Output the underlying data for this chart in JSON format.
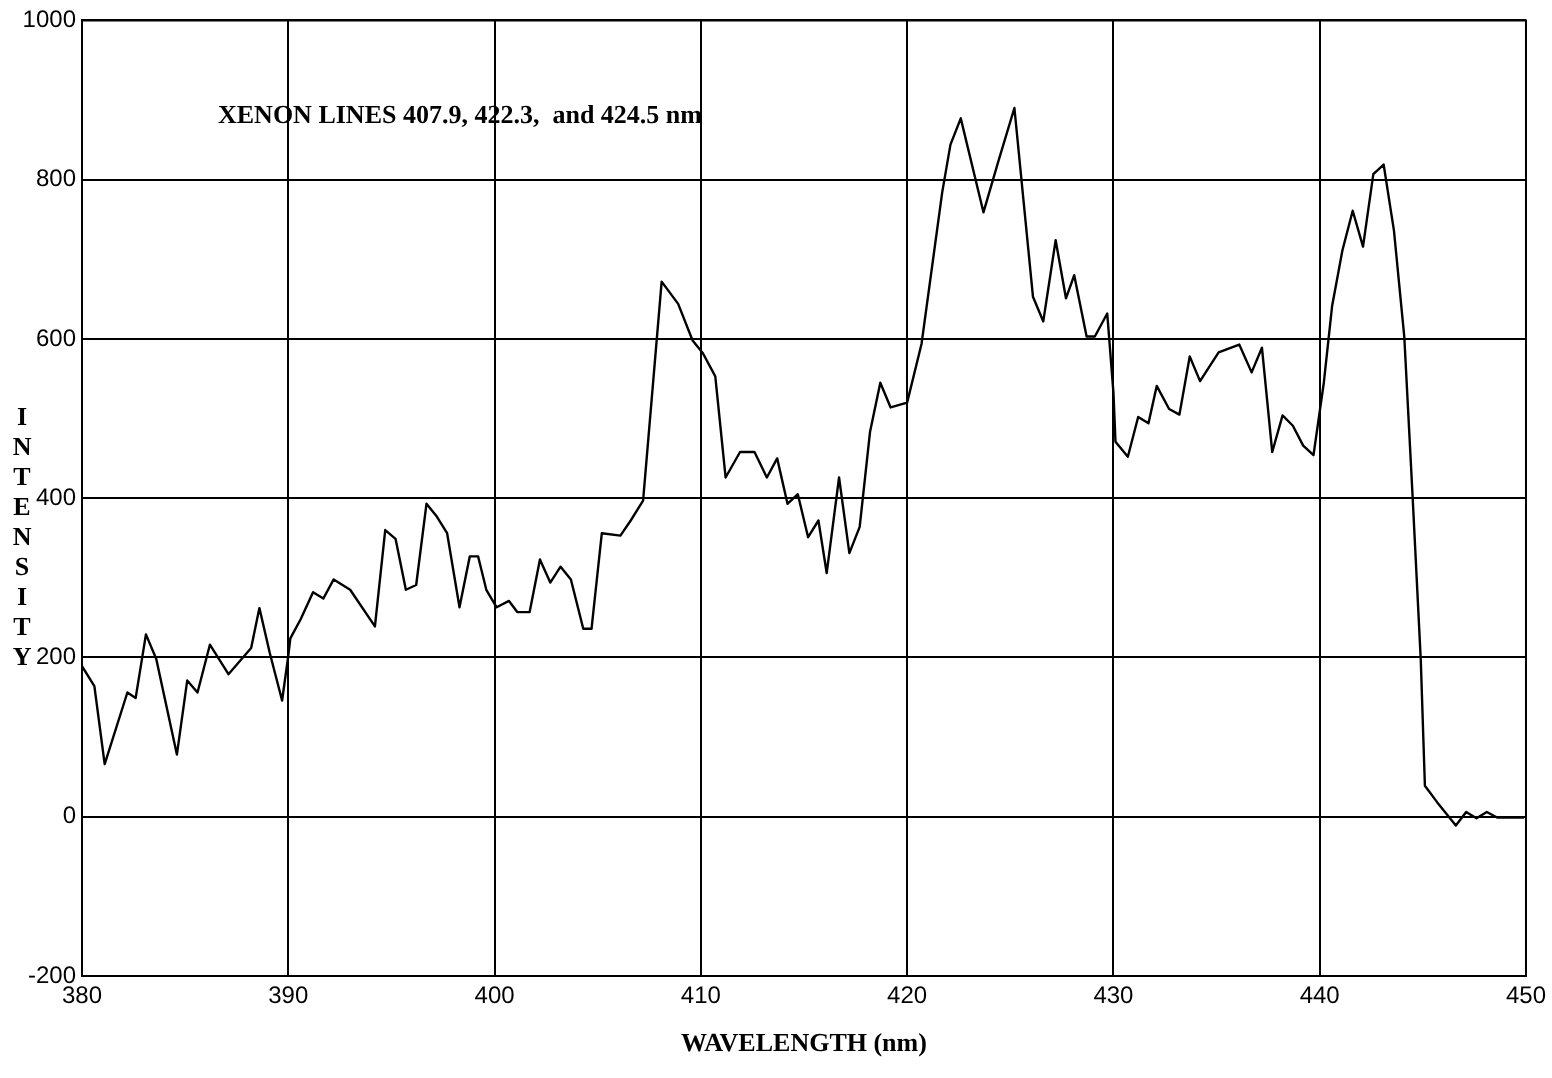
{
  "chart_data": {
    "type": "line",
    "xlabel": "WAVELENGTH (nm)",
    "ylabel": "INTENSITY",
    "annotations": [
      "XENON LINES 407.9, 422.3,  and 424.5 nm"
    ],
    "xlim": [
      380,
      450
    ],
    "xticks": [
      380,
      390,
      400,
      410,
      420,
      430,
      440,
      450
    ],
    "ylim": [
      -200,
      1000
    ],
    "yticks": [
      -200,
      0,
      200,
      400,
      600,
      800,
      1000
    ],
    "grid": true,
    "legend": false,
    "marker": "none",
    "line_style": "solid",
    "x": [
      380,
      380.6,
      381.1,
      382.2,
      382.6,
      383.1,
      383.6,
      384.6,
      385.1,
      385.6,
      386.2,
      387.1,
      388.2,
      388.6,
      389.1,
      389.7,
      390,
      390.1,
      390.6,
      391.2,
      391.7,
      392.2,
      393,
      394.2,
      394.7,
      395.2,
      395.7,
      396.2,
      396.7,
      397.2,
      397.7,
      398.3,
      398.8,
      399.2,
      399.6,
      400.1,
      400.7,
      401.1,
      401.7,
      402.2,
      402.7,
      403.2,
      403.7,
      404.3,
      404.7,
      405.2,
      406.1,
      406.6,
      407.2,
      408.1,
      408.9,
      409.6,
      410.1,
      410.7,
      411.2,
      411.9,
      412.6,
      413.2,
      413.7,
      414.2,
      414.7,
      415.2,
      415.7,
      416.1,
      416.7,
      417.2,
      417.7,
      418.2,
      418.7,
      419.2,
      420,
      420.7,
      421.7,
      422.1,
      422.6,
      423.7,
      424.4,
      425.2,
      426.1,
      426.6,
      427.2,
      427.7,
      428.1,
      428.7,
      429.1,
      429.7,
      430,
      430.1,
      430.7,
      431.2,
      431.7,
      432.1,
      432.7,
      433.2,
      433.7,
      434.2,
      435.1,
      436.1,
      436.7,
      437.2,
      437.7,
      438.2,
      438.7,
      439.2,
      439.7,
      440.2,
      440.6,
      441.1,
      441.6,
      442.1,
      442.6,
      443.1,
      443.6,
      444.1,
      444.5,
      444.9,
      445.1,
      445.7,
      446.6,
      447.1,
      447.6,
      448.1,
      448.6,
      449.9
    ],
    "series": [
      {
        "color": "#000000",
        "values": [
          189,
          164,
          66,
          156,
          149,
          229,
          198,
          78,
          171,
          156,
          216,
          179,
          212,
          262,
          206,
          146,
          202,
          224,
          248,
          282,
          274,
          298,
          285,
          239,
          360,
          349,
          285,
          291,
          393,
          377,
          356,
          263,
          327,
          327,
          285,
          263,
          271,
          257,
          257,
          323,
          294,
          314,
          298,
          236,
          236,
          356,
          353,
          372,
          397,
          672,
          644,
          598,
          582,
          553,
          426,
          458,
          458,
          426,
          450,
          393,
          405,
          351,
          372,
          306,
          426,
          331,
          364,
          483,
          545,
          514,
          520,
          594,
          784,
          844,
          877,
          759,
          821,
          890,
          653,
          622,
          724,
          651,
          680,
          603,
          603,
          632,
          533,
          471,
          452,
          502,
          494,
          541,
          512,
          505,
          578,
          547,
          583,
          593,
          558,
          589,
          458,
          504,
          491,
          466,
          454,
          545,
          641,
          711,
          761,
          716,
          807,
          819,
          736,
          603,
          404,
          197,
          39,
          18,
          -11,
          6,
          -2,
          6,
          -1,
          -1
        ]
      }
    ]
  }
}
